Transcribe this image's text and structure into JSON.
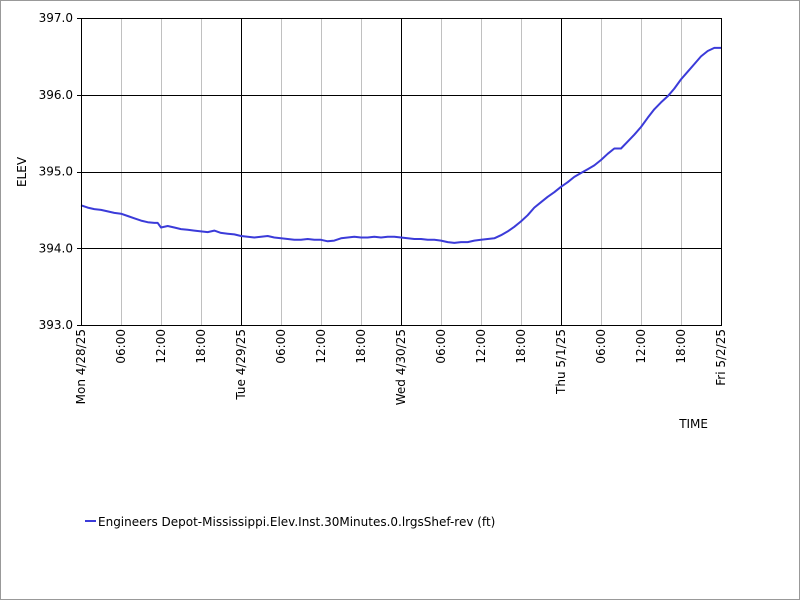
{
  "chart_data": {
    "type": "line",
    "title": "",
    "xlabel": "TIME",
    "ylabel": "ELEV",
    "ylim": [
      393.0,
      397.0
    ],
    "y_ticks": [
      "397.0",
      "396.0",
      "395.0",
      "394.0",
      "393.0"
    ],
    "y_tick_values": [
      397.0,
      396.0,
      395.0,
      394.0,
      393.0
    ],
    "xlim_hours": [
      0,
      96
    ],
    "x_ticks": [
      {
        "hour": 0,
        "label": "Mon 4/28/25",
        "major": true
      },
      {
        "hour": 6,
        "label": "06:00",
        "major": false
      },
      {
        "hour": 12,
        "label": "12:00",
        "major": false
      },
      {
        "hour": 18,
        "label": "18:00",
        "major": false
      },
      {
        "hour": 24,
        "label": "Tue 4/29/25",
        "major": true
      },
      {
        "hour": 30,
        "label": "06:00",
        "major": false
      },
      {
        "hour": 36,
        "label": "12:00",
        "major": false
      },
      {
        "hour": 42,
        "label": "18:00",
        "major": false
      },
      {
        "hour": 48,
        "label": "Wed 4/30/25",
        "major": true
      },
      {
        "hour": 54,
        "label": "06:00",
        "major": false
      },
      {
        "hour": 60,
        "label": "12:00",
        "major": false
      },
      {
        "hour": 66,
        "label": "18:00",
        "major": false
      },
      {
        "hour": 72,
        "label": "Thu 5/1/25",
        "major": true
      },
      {
        "hour": 78,
        "label": "06:00",
        "major": false
      },
      {
        "hour": 84,
        "label": "12:00",
        "major": false
      },
      {
        "hour": 90,
        "label": "18:00",
        "major": false
      },
      {
        "hour": 96,
        "label": "Fri 5/2/25",
        "major": true
      }
    ],
    "grid": true,
    "legend_position": "bottom-left",
    "series": [
      {
        "name": "Engineers Depot-Mississippi.Elev.Inst.30Minutes.0.lrgsShef-rev (ft)",
        "color": "#3b3bd9",
        "hours": [
          0,
          1,
          2,
          3,
          4,
          5,
          6,
          7,
          8,
          9,
          10,
          11,
          11.5,
          12,
          13,
          14,
          15,
          16,
          17,
          18,
          19,
          20,
          21,
          22,
          23,
          24,
          25,
          26,
          27,
          28,
          29,
          30,
          31,
          32,
          33,
          34,
          35,
          36,
          37,
          38,
          39,
          40,
          41,
          42,
          43,
          44,
          45,
          46,
          47,
          48,
          49,
          50,
          51,
          52,
          53,
          54,
          55,
          56,
          57,
          58,
          59,
          60,
          61,
          62,
          63,
          64,
          65,
          66,
          67,
          68,
          69,
          70,
          71,
          72,
          73,
          74,
          75,
          76,
          77,
          78,
          79,
          80,
          81,
          82,
          83,
          84,
          85,
          86,
          87,
          88,
          89,
          90,
          91,
          92,
          93,
          94,
          95,
          96
        ],
        "values": [
          394.56,
          394.53,
          394.51,
          394.5,
          394.48,
          394.46,
          394.45,
          394.42,
          394.39,
          394.36,
          394.34,
          394.33,
          394.33,
          394.27,
          394.29,
          394.27,
          394.25,
          394.24,
          394.23,
          394.22,
          394.21,
          394.23,
          394.2,
          394.19,
          394.18,
          394.16,
          394.15,
          394.14,
          394.15,
          394.16,
          394.14,
          394.13,
          394.12,
          394.11,
          394.11,
          394.12,
          394.11,
          394.11,
          394.09,
          394.1,
          394.13,
          394.14,
          394.15,
          394.14,
          394.14,
          394.15,
          394.14,
          394.15,
          394.15,
          394.14,
          394.13,
          394.12,
          394.12,
          394.11,
          394.11,
          394.1,
          394.08,
          394.07,
          394.08,
          394.08,
          394.1,
          394.11,
          394.12,
          394.13,
          394.17,
          394.22,
          394.28,
          394.35,
          394.43,
          394.53,
          394.6,
          394.67,
          394.73,
          394.8,
          394.86,
          394.93,
          394.98,
          395.03,
          395.08,
          395.15,
          395.23,
          395.3,
          395.3,
          395.39,
          395.48,
          395.58,
          395.7,
          395.81,
          395.9,
          395.98,
          396.08,
          396.2,
          396.3,
          396.4,
          396.5,
          396.57,
          396.61,
          396.61
        ]
      }
    ]
  }
}
